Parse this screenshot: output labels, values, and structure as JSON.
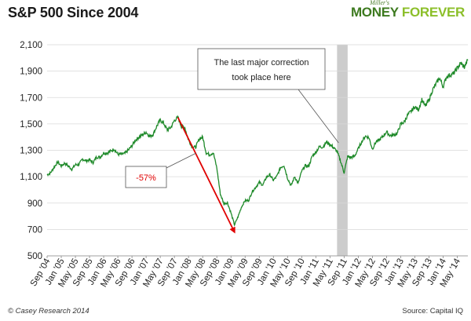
{
  "title": "S&P 500 Since 2004",
  "brand": {
    "small": "Miller's",
    "money": "MONEY",
    "forever": "FOREVER"
  },
  "footer": {
    "left": "© Casey Research 2014",
    "right": "Source: Capital IQ"
  },
  "annotations": {
    "correction_note": [
      "The last major correction",
      "took place here"
    ],
    "drawdown_label": "-57%"
  },
  "colors": {
    "line": "#1f8a2a",
    "arrow": "#e00000",
    "band": "#cccccc",
    "grid": "#d9d9d9"
  },
  "chart_data": {
    "type": "line",
    "title": "S&P 500 Since 2004",
    "xlabel": "",
    "ylabel": "",
    "ylim": [
      500,
      2100
    ],
    "yticks": [
      500,
      700,
      900,
      1100,
      1300,
      1500,
      1700,
      1900,
      2100
    ],
    "ytick_labels": [
      "500",
      "700",
      "900",
      "1,100",
      "1,300",
      "1,500",
      "1,700",
      "1,900",
      "2,100"
    ],
    "xticks": [
      "Sep '04",
      "Jan '05",
      "May '05",
      "Sep '05",
      "Jan '06",
      "May '06",
      "Sep '06",
      "Jan '07",
      "May '07",
      "Sep '07",
      "Jan '08",
      "May '08",
      "Sep '08",
      "Jan '09",
      "May '09",
      "Sep '09",
      "Jan '10",
      "May '10",
      "Sep '10",
      "Jan '11",
      "May '11",
      "Sep '11",
      "Jan '12",
      "May '12",
      "Sep '12",
      "Jan '13",
      "May '13",
      "Sep '13",
      "Jan '14",
      "May '14"
    ],
    "grid": true,
    "x_start": "2004-09",
    "x_end": "2014-08",
    "series": [
      {
        "dates": [
          "2004-09",
          "2004-10",
          "2004-11",
          "2004-12",
          "2005-01",
          "2005-02",
          "2005-03",
          "2005-04",
          "2005-05",
          "2005-06",
          "2005-07",
          "2005-08",
          "2005-09",
          "2005-10",
          "2005-11",
          "2005-12",
          "2006-01",
          "2006-02",
          "2006-03",
          "2006-04",
          "2006-05",
          "2006-06",
          "2006-07",
          "2006-08",
          "2006-09",
          "2006-10",
          "2006-11",
          "2006-12",
          "2007-01",
          "2007-02",
          "2007-03",
          "2007-04",
          "2007-05",
          "2007-06",
          "2007-07",
          "2007-08",
          "2007-09",
          "2007-10",
          "2007-11",
          "2007-12",
          "2008-01",
          "2008-02",
          "2008-03",
          "2008-04",
          "2008-05",
          "2008-06",
          "2008-07",
          "2008-08",
          "2008-09",
          "2008-10",
          "2008-11",
          "2008-12",
          "2009-01",
          "2009-02",
          "2009-03",
          "2009-04",
          "2009-05",
          "2009-06",
          "2009-07",
          "2009-08",
          "2009-09",
          "2009-10",
          "2009-11",
          "2009-12",
          "2010-01",
          "2010-02",
          "2010-03",
          "2010-04",
          "2010-05",
          "2010-06",
          "2010-07",
          "2010-08",
          "2010-09",
          "2010-10",
          "2010-11",
          "2010-12",
          "2011-01",
          "2011-02",
          "2011-03",
          "2011-04",
          "2011-05",
          "2011-06",
          "2011-07",
          "2011-08",
          "2011-09",
          "2011-10",
          "2011-11",
          "2011-12",
          "2012-01",
          "2012-02",
          "2012-03",
          "2012-04",
          "2012-05",
          "2012-06",
          "2012-07",
          "2012-08",
          "2012-09",
          "2012-10",
          "2012-11",
          "2012-12",
          "2013-01",
          "2013-02",
          "2013-03",
          "2013-04",
          "2013-05",
          "2013-06",
          "2013-07",
          "2013-08",
          "2013-09",
          "2013-10",
          "2013-11",
          "2013-12",
          "2014-01",
          "2014-02",
          "2014-03",
          "2014-04",
          "2014-05",
          "2014-06",
          "2014-07",
          "2014-08"
        ],
        "values": [
          1114,
          1130,
          1173,
          1211,
          1181,
          1203,
          1180,
          1156,
          1191,
          1191,
          1234,
          1220,
          1228,
          1207,
          1249,
          1248,
          1280,
          1280,
          1294,
          1310,
          1270,
          1270,
          1276,
          1303,
          1335,
          1377,
          1400,
          1418,
          1438,
          1406,
          1420,
          1482,
          1530,
          1503,
          1455,
          1473,
          1526,
          1549,
          1481,
          1468,
          1378,
          1330,
          1322,
          1385,
          1400,
          1280,
          1267,
          1282,
          1166,
          968,
          896,
          903,
          826,
          735,
          797,
          872,
          919,
          919,
          987,
          1020,
          1057,
          1036,
          1095,
          1115,
          1073,
          1104,
          1169,
          1186,
          1089,
          1031,
          1101,
          1049,
          1141,
          1183,
          1180,
          1257,
          1286,
          1327,
          1325,
          1363,
          1345,
          1320,
          1292,
          1218,
          1131,
          1253,
          1246,
          1257,
          1312,
          1365,
          1408,
          1397,
          1310,
          1362,
          1379,
          1406,
          1440,
          1412,
          1416,
          1426,
          1498,
          1514,
          1569,
          1597,
          1630,
          1606,
          1685,
          1632,
          1681,
          1756,
          1805,
          1848,
          1782,
          1859,
          1872,
          1883,
          1923,
          1960,
          1930,
          1985
        ]
      }
    ],
    "correction_band": [
      "2011-07",
      "2011-10"
    ]
  }
}
